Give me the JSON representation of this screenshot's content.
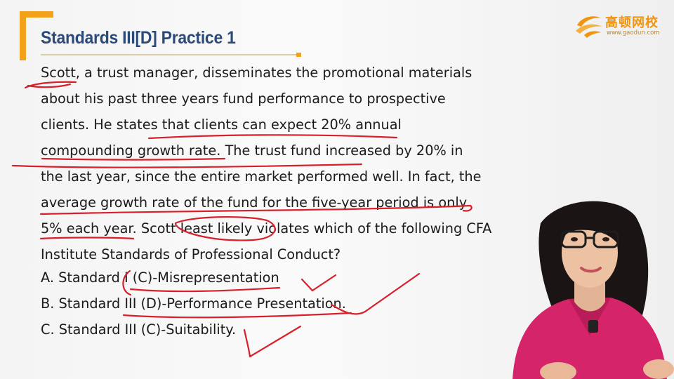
{
  "slide": {
    "title": "Standards III[D] Practice 1",
    "logo": {
      "name": "高顿网校",
      "url": "www.gaodun.com"
    },
    "question_lines": [
      "Scott, a trust manager, disseminates the promotional materials",
      "about his past three years fund performance to prospective",
      "clients. He states that clients can expect 20% annual",
      "compounding growth rate. The trust fund increased by 20% in",
      "the last year, since the entire market performed well. In fact, the",
      "average growth rate of the fund for the five-year period is only",
      "5% each year. Scott least likely violates which of the following CFA",
      "Institute Standards of Professional Conduct?"
    ],
    "options": [
      "A. Standard I (C)-Misrepresentation",
      "B. Standard III (D)-Performance Presentation.",
      "C. Standard III (C)-Suitability."
    ]
  },
  "colors": {
    "accent": "#f2a11b",
    "title": "#2b4a7a",
    "ink": "#d8202a",
    "presenter_top": "#d6246a"
  }
}
